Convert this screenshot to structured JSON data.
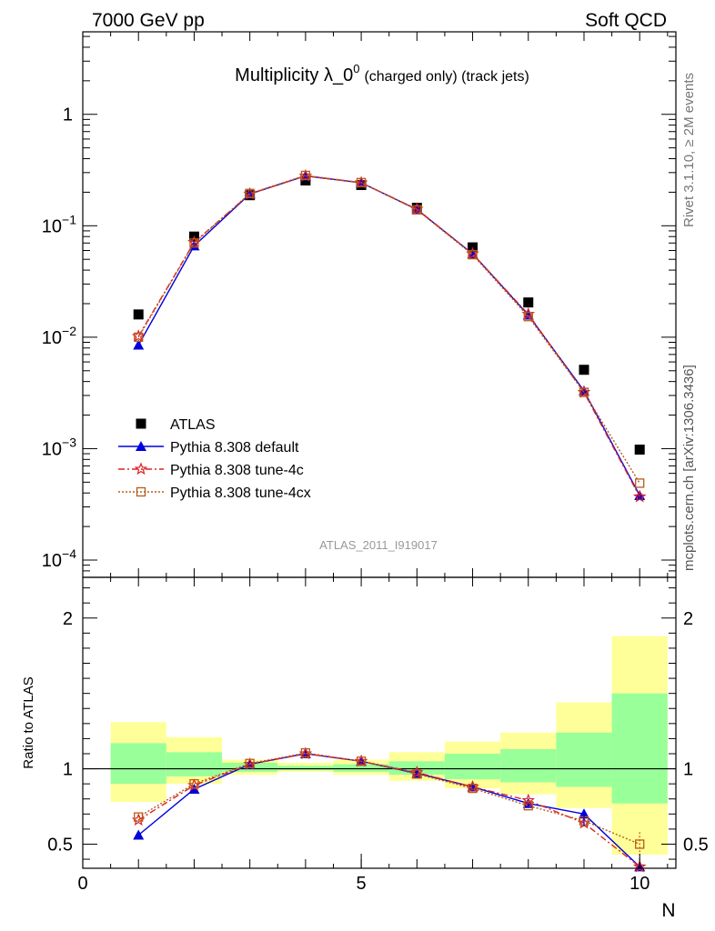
{
  "header": {
    "energy_label": "7000 GeV pp",
    "category_label": "Soft QCD",
    "title_main": "Multiplicity λ_0",
    "title_sup": "0",
    "title_sub": "(charged only) (track jets)",
    "analysis_id": "ATLAS_2011_I919017",
    "side_rivet": "Rivet 3.1.10, ≥ 2M events",
    "side_mcplots": "mcplots.cern.ch [arXiv:1306.3436]"
  },
  "chart_data": [
    {
      "type": "scatter",
      "panel": "main",
      "ylog": true,
      "xlim": [
        0,
        10.65
      ],
      "ylim": [
        7e-05,
        5.5
      ],
      "xlabel": "",
      "ylabel": "",
      "yticks": [
        {
          "value": 1,
          "base": "1",
          "exp": ""
        },
        {
          "value": 0.1,
          "base": "10",
          "exp": "−1"
        },
        {
          "value": 0.01,
          "base": "10",
          "exp": "−2"
        },
        {
          "value": 0.001,
          "base": "10",
          "exp": "−3"
        },
        {
          "value": 0.0001,
          "base": "10",
          "exp": "−4"
        }
      ],
      "legend_position": "lower-left",
      "series": [
        {
          "name": "ATLAS",
          "color": "#000000",
          "marker": "square",
          "line": "none",
          "x": [
            1,
            2,
            3,
            4,
            5,
            6,
            7,
            8,
            9,
            10
          ],
          "y": [
            0.016,
            0.08,
            0.188,
            0.255,
            0.232,
            0.145,
            0.064,
            0.0205,
            0.0051,
            0.00098
          ]
        },
        {
          "name": "Pythia 8.308 default",
          "color": "#0000dd",
          "marker": "triangle",
          "line": "solid",
          "x": [
            1,
            2,
            3,
            4,
            5,
            6,
            7,
            8,
            9,
            10
          ],
          "y": [
            0.0085,
            0.066,
            0.193,
            0.28,
            0.243,
            0.14,
            0.056,
            0.0158,
            0.0033,
            0.00038
          ]
        },
        {
          "name": "Pythia 8.308 tune-4c",
          "color": "#dd2222",
          "marker": "star",
          "line": "dashdot",
          "x": [
            1,
            2,
            3,
            4,
            5,
            6,
            7,
            8,
            9,
            10
          ],
          "y": [
            0.0102,
            0.071,
            0.193,
            0.28,
            0.243,
            0.141,
            0.056,
            0.0161,
            0.0032,
            0.00037
          ]
        },
        {
          "name": "Pythia 8.308 tune-4cx",
          "color": "#b85a1a",
          "marker": "opensquare",
          "line": "dotted",
          "x": [
            1,
            2,
            3,
            4,
            5,
            6,
            7,
            8,
            9,
            10
          ],
          "y": [
            0.01,
            0.07,
            0.195,
            0.283,
            0.244,
            0.139,
            0.055,
            0.0153,
            0.0032,
            0.00049
          ]
        }
      ]
    },
    {
      "type": "scatter",
      "panel": "ratio",
      "ylog": false,
      "xlim": [
        0,
        10.65
      ],
      "ylim": [
        0.34,
        2.27
      ],
      "xlabel": "N",
      "ylabel": "Ratio to ATLAS",
      "xticks": [
        {
          "value": 0,
          "label": "0"
        },
        {
          "value": 5,
          "label": "5"
        },
        {
          "value": 10,
          "label": "10"
        }
      ],
      "yticks": [
        {
          "value": 2,
          "label": "2"
        },
        {
          "value": 1,
          "label": "1"
        },
        {
          "value": 0.5,
          "label": "0.5"
        }
      ],
      "bands": {
        "x_lo": [
          0.5,
          1.5,
          2.5,
          3.5,
          4.5,
          5.5,
          6.5,
          7.5,
          8.5,
          9.5
        ],
        "x_hi": [
          1.5,
          2.5,
          3.5,
          4.5,
          5.5,
          6.5,
          7.5,
          8.5,
          9.5,
          10.5
        ],
        "yellow_lo": [
          0.78,
          0.9,
          0.96,
          0.98,
          0.96,
          0.92,
          0.87,
          0.83,
          0.74,
          0.43
        ],
        "yellow_hi": [
          1.31,
          1.21,
          1.06,
          1.04,
          1.06,
          1.11,
          1.18,
          1.24,
          1.44,
          1.88
        ],
        "green_lo": [
          0.9,
          0.95,
          0.98,
          0.99,
          0.98,
          0.96,
          0.93,
          0.91,
          0.88,
          0.77
        ],
        "green_hi": [
          1.17,
          1.11,
          1.04,
          1.02,
          1.03,
          1.05,
          1.1,
          1.13,
          1.24,
          1.5
        ],
        "yellow_color": "#ffff99",
        "green_color": "#99ff99"
      },
      "series": [
        {
          "name": "Pythia 8.308 default",
          "color": "#0000dd",
          "marker": "triangle",
          "line": "solid",
          "x": [
            1,
            2,
            3,
            4,
            5,
            6,
            7,
            8,
            9,
            10
          ],
          "y": [
            0.56,
            0.865,
            1.03,
            1.1,
            1.05,
            0.97,
            0.88,
            0.77,
            0.7,
            0.35
          ]
        },
        {
          "name": "Pythia 8.308 tune-4c",
          "color": "#dd2222",
          "marker": "star",
          "line": "dashdot",
          "x": [
            1,
            2,
            3,
            4,
            5,
            6,
            7,
            8,
            9,
            10
          ],
          "y": [
            0.66,
            0.89,
            1.03,
            1.1,
            1.05,
            0.975,
            0.88,
            0.79,
            0.64,
            0.35
          ]
        },
        {
          "name": "Pythia 8.308 tune-4cx",
          "color": "#b85a1a",
          "marker": "opensquare",
          "line": "dotted",
          "x": [
            1,
            2,
            3,
            4,
            5,
            6,
            7,
            8,
            9,
            10
          ],
          "y": [
            0.68,
            0.9,
            1.035,
            1.105,
            1.05,
            0.965,
            0.87,
            0.755,
            0.655,
            0.5
          ]
        }
      ]
    }
  ]
}
